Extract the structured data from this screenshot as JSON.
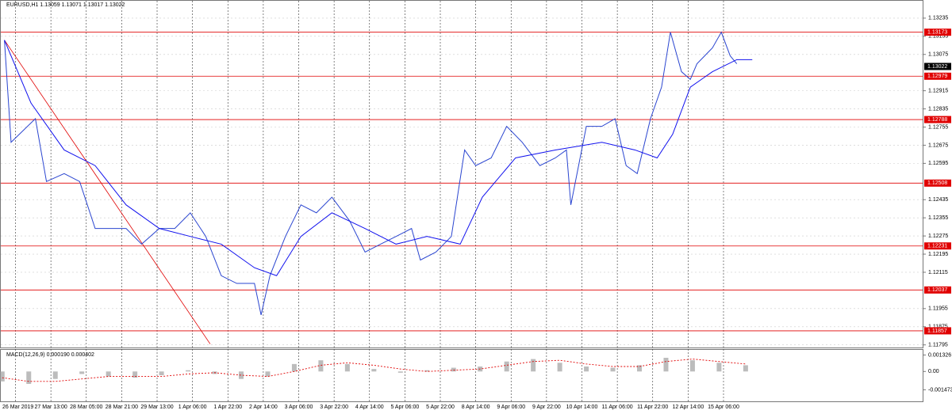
{
  "chart_data": [
    {
      "type": "line",
      "title": "EURUSD,H1  1.13059 1.13071 1.13017 1.13022",
      "xlim": [
        -7,
        410
      ],
      "xticks": [
        {
          "value": 0,
          "label": "26 Mar 2019"
        },
        {
          "value": 16,
          "label": "27 Mar 13:00"
        },
        {
          "value": 32,
          "label": "28 Mar 05:00"
        },
        {
          "value": 48,
          "label": "28 Mar 21:00"
        },
        {
          "value": 64,
          "label": "29 Mar 13:00"
        },
        {
          "value": 80,
          "label": "1 Apr 06:00"
        },
        {
          "value": 96,
          "label": "1 Apr 22:00"
        },
        {
          "value": 112,
          "label": "2 Apr 14:00"
        },
        {
          "value": 128,
          "label": "3 Apr 06:00"
        },
        {
          "value": 144,
          "label": "3 Apr 22:00"
        },
        {
          "value": 160,
          "label": "4 Apr 14:00"
        },
        {
          "value": 176,
          "label": "5 Apr 06:00"
        },
        {
          "value": 192,
          "label": "5 Apr 22:00"
        },
        {
          "value": 208,
          "label": "8 Apr 14:00"
        },
        {
          "value": 224,
          "label": "9 Apr 06:00"
        },
        {
          "value": 240,
          "label": "9 Apr 22:00"
        },
        {
          "value": 256,
          "label": "10 Apr 14:00"
        },
        {
          "value": 272,
          "label": "11 Apr 06:00"
        },
        {
          "value": 288,
          "label": "11 Apr 22:00"
        },
        {
          "value": 304,
          "label": "12 Apr 14:00"
        },
        {
          "value": 320,
          "label": "15 Apr 06:00"
        }
      ],
      "ylim": [
        1.1178,
        1.1328
      ],
      "yticks": [
        1.13235,
        1.13155,
        1.13075,
        1.12915,
        1.12835,
        1.12755,
        1.12675,
        1.12595,
        1.12435,
        1.12355,
        1.12275,
        1.12195,
        1.12115,
        1.11955,
        1.11875,
        1.11795
      ],
      "grid": true,
      "series": [
        {
          "color": "#2a45d0",
          "x": [
            -5,
            -2,
            9,
            14,
            22,
            29,
            36,
            43,
            50,
            57,
            65,
            72,
            79,
            86,
            93,
            100,
            108,
            111,
            115,
            122,
            129,
            136,
            143,
            151,
            158,
            165,
            172,
            179,
            183,
            190,
            197,
            203,
            208,
            215,
            222,
            229,
            237,
            244,
            249,
            251,
            258,
            265,
            271,
            276,
            281,
            287,
            292,
            296,
            301,
            305,
            308,
            315,
            319,
            323,
            326
          ],
          "values": [
            1.13138,
            1.12688,
            1.12792,
            1.12515,
            1.1255,
            1.12515,
            1.12308,
            1.12308,
            1.12308,
            1.12239,
            1.12308,
            1.12308,
            1.12377,
            1.12273,
            1.121,
            1.12066,
            1.12066,
            1.11927,
            1.121,
            1.12273,
            1.12412,
            1.12377,
            1.12446,
            1.12342,
            1.12204,
            1.12239,
            1.12273,
            1.12308,
            1.12169,
            1.12204,
            1.12273,
            1.12654,
            1.12585,
            1.12619,
            1.12758,
            1.12688,
            1.12585,
            1.12619,
            1.12654,
            1.12412,
            1.12758,
            1.12758,
            1.12792,
            1.12585,
            1.1255,
            1.12792,
            1.12931,
            1.13173,
            1.12999,
            1.12965,
            1.13034,
            1.13104,
            1.13173,
            1.13069,
            1.13034
          ]
        },
        {
          "color": "#1010ee",
          "x": [
            -5,
            7,
            22,
            36,
            50,
            65,
            79,
            93,
            108,
            118,
            129,
            143,
            158,
            172,
            186,
            201,
            211,
            226,
            244,
            265,
            280,
            290,
            297,
            305,
            315,
            326,
            333
          ],
          "values": [
            1.13138,
            1.12861,
            1.12654,
            1.12585,
            1.12412,
            1.12308,
            1.12273,
            1.12239,
            1.12135,
            1.121,
            1.12273,
            1.12377,
            1.12308,
            1.12239,
            1.12273,
            1.12239,
            1.12446,
            1.12619,
            1.12654,
            1.12688,
            1.12654,
            1.12619,
            1.12723,
            1.12931,
            1.12999,
            1.13052,
            1.13052
          ]
        }
      ],
      "trendline": {
        "color": "#e00000",
        "x": [
          -5,
          88
        ],
        "values": [
          1.13138,
          1.11799
        ]
      },
      "levels": [
        1.13173,
        1.12979,
        1.12788,
        1.12508,
        1.12231,
        1.12037,
        1.11857
      ],
      "level_color": "#e00000",
      "current": 1.13022
    },
    {
      "type": "macd",
      "title": "MACD(12,26,9) 0.000190 0.000402",
      "xlim": [
        -7,
        410
      ],
      "ylim": [
        -0.0024,
        0.0018
      ],
      "yticks": [
        0.001326,
        {
          "value": 0,
          "label": "0.00"
        },
        -0.001473
      ],
      "x": [
        -6,
        6,
        18,
        30,
        42,
        54,
        66,
        78,
        90,
        102,
        114,
        126,
        138,
        150,
        162,
        174,
        186,
        198,
        210,
        222,
        234,
        246,
        258,
        270,
        282,
        294,
        306,
        318,
        330
      ],
      "series": [
        {
          "color": "#a0a0a0",
          "values": [
            -0.0008,
            -0.001,
            -0.0006,
            -0.0002,
            -0.0004,
            -0.0005,
            -0.0003,
            0.0001,
            -0.0002,
            -0.0006,
            -0.0004,
            0.0006,
            0.0009,
            0.0006,
            0.0002,
            -0.0001,
            0.0001,
            0.0003,
            0.0004,
            0.0008,
            0.001,
            0.0007,
            0.0004,
            0.0003,
            0.0005,
            0.0011,
            0.0009,
            0.0007,
            0.0005
          ]
        },
        {
          "color": "#e00000",
          "values": [
            -0.0005,
            -0.0008,
            -0.0008,
            -0.0006,
            -0.0004,
            -0.0004,
            -0.0004,
            -0.0002,
            -0.0001,
            -0.0003,
            -0.0004,
            0,
            0.0005,
            0.0007,
            0.0005,
            0.0002,
            0,
            0.0001,
            0.0002,
            0.0005,
            0.0008,
            0.0009,
            0.0006,
            0.0004,
            0.0004,
            0.0008,
            0.001,
            0.0008,
            0.0006
          ]
        }
      ]
    }
  ]
}
